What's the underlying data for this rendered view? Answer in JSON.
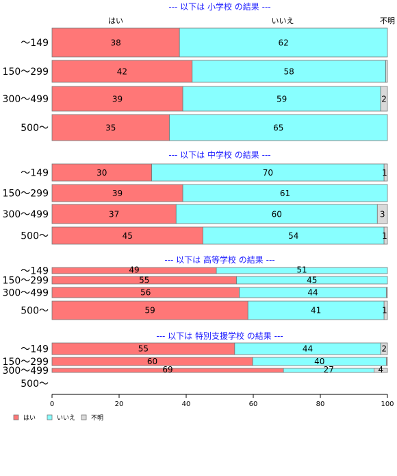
{
  "chart_data": {
    "type": "bar",
    "orientation": "horizontal",
    "stacked": true,
    "legend": {
      "placement": "bottom-left",
      "entries": [
        "はい",
        "いいえ",
        "不明"
      ]
    },
    "column_headers": [
      "はい",
      "いいえ",
      "不明"
    ],
    "xlim": [
      0,
      100
    ],
    "xticks": [
      0,
      20,
      40,
      60,
      80,
      100
    ],
    "colors": {
      "yes": "#ff7777",
      "no": "#88ffff",
      "unknown": "#d9d9d9",
      "title": "#1a1aff"
    },
    "sections": [
      {
        "title": "--- 以下は 小学校 の結果 ---",
        "categories": [
          "〜149",
          "150〜299",
          "300〜499",
          "500〜"
        ],
        "values": [
          [
            38,
            62,
            0
          ],
          [
            42,
            58,
            0.5
          ],
          [
            39,
            59,
            2
          ],
          [
            35,
            65,
            0
          ]
        ],
        "labels": [
          [
            "38",
            "62",
            ""
          ],
          [
            "42",
            "58",
            ""
          ],
          [
            "39",
            "59",
            "2"
          ],
          [
            "35",
            "65",
            ""
          ]
        ]
      },
      {
        "title": "--- 以下は 中学校 の結果 ---",
        "categories": [
          "〜149",
          "150〜299",
          "300〜499",
          "500〜"
        ],
        "values": [
          [
            30,
            70,
            1
          ],
          [
            39,
            61,
            0
          ],
          [
            37,
            60,
            3
          ],
          [
            45,
            54,
            1
          ]
        ],
        "labels": [
          [
            "30",
            "70",
            "1"
          ],
          [
            "39",
            "61",
            ""
          ],
          [
            "37",
            "60",
            "3"
          ],
          [
            "45",
            "54",
            "1"
          ]
        ]
      },
      {
        "title": "--- 以下は 高等学校 の結果 ---",
        "categories": [
          "〜149",
          "150〜299",
          "300〜499",
          "500〜"
        ],
        "values": [
          [
            49,
            51,
            0
          ],
          [
            55,
            45,
            0
          ],
          [
            56,
            44,
            0.3
          ],
          [
            59,
            41,
            1
          ]
        ],
        "labels": [
          [
            "49",
            "51",
            ""
          ],
          [
            "55",
            "45",
            ""
          ],
          [
            "56",
            "44",
            ""
          ],
          [
            "59",
            "41",
            "1"
          ]
        ]
      },
      {
        "title": "--- 以下は 特別支援学校 の結果 ---",
        "categories": [
          "〜149",
          "150〜299",
          "300〜499",
          "500〜"
        ],
        "values": [
          [
            55,
            44,
            2
          ],
          [
            60,
            40,
            0.3
          ],
          [
            69,
            27,
            4
          ],
          [
            0,
            0,
            0
          ]
        ],
        "labels": [
          [
            "55",
            "44",
            "2"
          ],
          [
            "60",
            "40",
            ""
          ],
          [
            "69",
            "27",
            "4"
          ],
          [
            "",
            "",
            ""
          ]
        ]
      }
    ]
  }
}
